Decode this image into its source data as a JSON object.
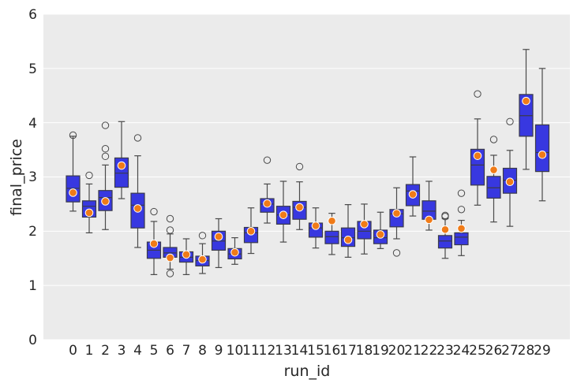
{
  "chart_data": {
    "type": "box",
    "xlabel": "run_id",
    "ylabel": "final_price",
    "ylim": [
      0,
      6
    ],
    "yticks": [
      "0",
      "1",
      "2",
      "3",
      "4",
      "5",
      "6"
    ],
    "grid": true,
    "colors": {
      "background": "#ebebeb",
      "grid": "#ffffff",
      "box_fill": "#3838e0",
      "box_edge": "#3a3a4a",
      "whisker": "#4a4a4a",
      "mean_marker": "#f07b18",
      "mean_edge": "#ffffff",
      "text": "#262626"
    },
    "categories": [
      "0",
      "1",
      "2",
      "3",
      "4",
      "5",
      "6",
      "7",
      "8",
      "9",
      "10",
      "11",
      "12",
      "13",
      "14",
      "15",
      "16",
      "17",
      "18",
      "19",
      "20",
      "21",
      "22",
      "23",
      "24",
      "25",
      "26",
      "27",
      "28",
      "29"
    ],
    "boxes": [
      {
        "lo": 2.37,
        "q1": 2.54,
        "median": 2.79,
        "q3": 3.02,
        "hi": 3.75,
        "mean": 2.71,
        "outliers": [
          3.77
        ]
      },
      {
        "lo": 1.97,
        "q1": 2.26,
        "median": 2.46,
        "q3": 2.56,
        "hi": 2.87,
        "mean": 2.34,
        "outliers": [
          3.03
        ]
      },
      {
        "lo": 2.03,
        "q1": 2.38,
        "median": 2.62,
        "q3": 2.75,
        "hi": 3.22,
        "mean": 2.55,
        "outliers": [
          3.38,
          3.52,
          3.95
        ]
      },
      {
        "lo": 2.6,
        "q1": 2.81,
        "median": 3.07,
        "q3": 3.35,
        "hi": 4.02,
        "mean": 3.21,
        "outliers": []
      },
      {
        "lo": 1.7,
        "q1": 2.06,
        "median": 2.48,
        "q3": 2.7,
        "hi": 3.39,
        "mean": 2.42,
        "outliers": [
          3.72
        ]
      },
      {
        "lo": 1.2,
        "q1": 1.5,
        "median": 1.65,
        "q3": 1.8,
        "hi": 2.18,
        "mean": 1.77,
        "outliers": [
          2.36
        ]
      },
      {
        "lo": 1.3,
        "q1": 1.52,
        "median": 1.6,
        "q3": 1.7,
        "hi": 1.95,
        "mean": 1.51,
        "outliers": [
          1.22,
          2.02,
          2.23
        ]
      },
      {
        "lo": 1.2,
        "q1": 1.43,
        "median": 1.52,
        "q3": 1.62,
        "hi": 1.86,
        "mean": 1.57,
        "outliers": []
      },
      {
        "lo": 1.22,
        "q1": 1.36,
        "median": 1.46,
        "q3": 1.54,
        "hi": 1.77,
        "mean": 1.48,
        "outliers": [
          1.92
        ]
      },
      {
        "lo": 1.33,
        "q1": 1.65,
        "median": 1.82,
        "q3": 2.0,
        "hi": 2.23,
        "mean": 1.9,
        "outliers": []
      },
      {
        "lo": 1.39,
        "q1": 1.49,
        "median": 1.58,
        "q3": 1.68,
        "hi": 1.88,
        "mean": 1.61,
        "outliers": []
      },
      {
        "lo": 1.59,
        "q1": 1.79,
        "median": 1.97,
        "q3": 2.07,
        "hi": 2.43,
        "mean": 2.0,
        "outliers": []
      },
      {
        "lo": 2.15,
        "q1": 2.35,
        "median": 2.5,
        "q3": 2.6,
        "hi": 2.87,
        "mean": 2.51,
        "outliers": [
          3.31
        ]
      },
      {
        "lo": 1.8,
        "q1": 2.13,
        "median": 2.3,
        "q3": 2.46,
        "hi": 2.92,
        "mean": 2.3,
        "outliers": []
      },
      {
        "lo": 2.03,
        "q1": 2.22,
        "median": 2.44,
        "q3": 2.55,
        "hi": 2.91,
        "mean": 2.44,
        "outliers": [
          3.19
        ]
      },
      {
        "lo": 1.69,
        "q1": 1.89,
        "median": 2.06,
        "q3": 2.15,
        "hi": 2.43,
        "mean": 2.1,
        "outliers": []
      },
      {
        "lo": 1.57,
        "q1": 1.77,
        "median": 1.9,
        "q3": 2.0,
        "hi": 2.33,
        "mean": 2.19,
        "outliers": []
      },
      {
        "lo": 1.52,
        "q1": 1.72,
        "median": 1.88,
        "q3": 2.06,
        "hi": 2.49,
        "mean": 1.84,
        "outliers": []
      },
      {
        "lo": 1.58,
        "q1": 1.86,
        "median": 2.0,
        "q3": 2.18,
        "hi": 2.5,
        "mean": 2.13,
        "outliers": []
      },
      {
        "lo": 1.68,
        "q1": 1.77,
        "median": 1.88,
        "q3": 2.02,
        "hi": 2.35,
        "mean": 1.94,
        "outliers": []
      },
      {
        "lo": 1.86,
        "q1": 2.08,
        "median": 2.32,
        "q3": 2.4,
        "hi": 2.8,
        "mean": 2.33,
        "outliers": [
          1.6
        ]
      },
      {
        "lo": 2.28,
        "q1": 2.47,
        "median": 2.74,
        "q3": 2.86,
        "hi": 3.37,
        "mean": 2.68,
        "outliers": []
      },
      {
        "lo": 2.02,
        "q1": 2.22,
        "median": 2.37,
        "q3": 2.56,
        "hi": 2.92,
        "mean": 2.21,
        "outliers": []
      },
      {
        "lo": 1.5,
        "q1": 1.69,
        "median": 1.82,
        "q3": 1.92,
        "hi": 2.23,
        "mean": 2.03,
        "outliers": [
          2.27,
          2.29
        ]
      },
      {
        "lo": 1.55,
        "q1": 1.75,
        "median": 1.89,
        "q3": 1.97,
        "hi": 2.2,
        "mean": 2.05,
        "outliers": [
          2.4,
          2.7
        ]
      },
      {
        "lo": 2.48,
        "q1": 2.85,
        "median": 3.22,
        "q3": 3.51,
        "hi": 4.07,
        "mean": 3.39,
        "outliers": [
          4.53
        ]
      },
      {
        "lo": 2.17,
        "q1": 2.61,
        "median": 2.8,
        "q3": 3.01,
        "hi": 3.4,
        "mean": 3.13,
        "outliers": [
          3.69
        ]
      },
      {
        "lo": 2.09,
        "q1": 2.7,
        "median": 2.94,
        "q3": 3.16,
        "hi": 3.49,
        "mean": 2.91,
        "outliers": [
          4.02
        ]
      },
      {
        "lo": 3.14,
        "q1": 3.75,
        "median": 4.13,
        "q3": 4.52,
        "hi": 5.35,
        "mean": 4.4,
        "outliers": []
      },
      {
        "lo": 2.56,
        "q1": 3.1,
        "median": 3.45,
        "q3": 3.96,
        "hi": 5.0,
        "mean": 3.41,
        "outliers": []
      }
    ]
  }
}
